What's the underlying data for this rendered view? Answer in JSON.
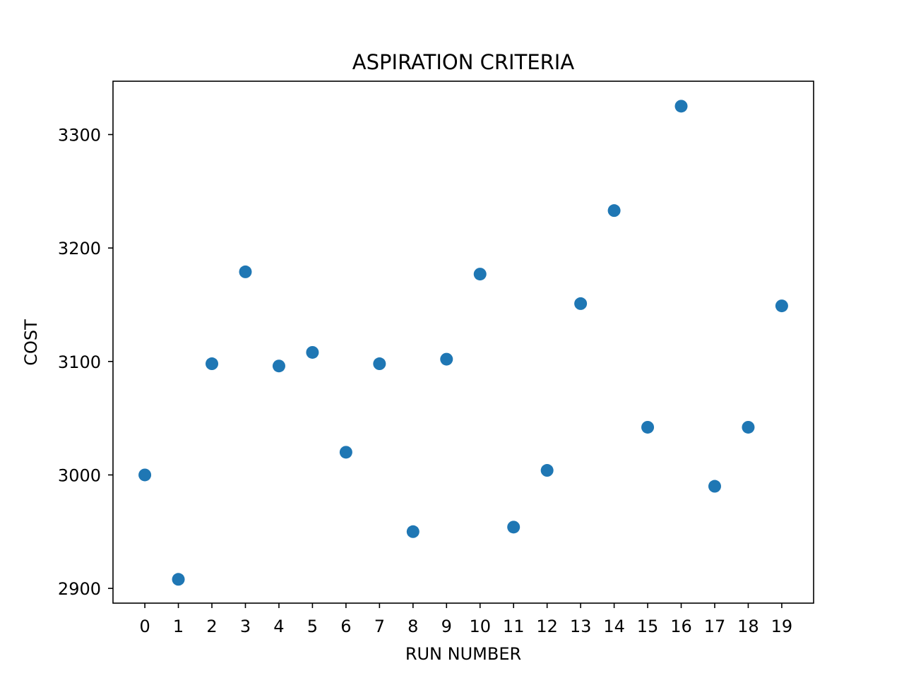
{
  "chart_data": {
    "type": "scatter",
    "title": "ASPIRATION CRITERIA",
    "xlabel": "RUN NUMBER",
    "ylabel": "COST",
    "x": [
      0,
      1,
      2,
      3,
      4,
      5,
      6,
      7,
      8,
      9,
      10,
      11,
      12,
      13,
      14,
      15,
      16,
      17,
      18,
      19
    ],
    "y": [
      3000,
      2908,
      3098,
      3179,
      3096,
      3108,
      3020,
      3098,
      2950,
      3102,
      3177,
      2954,
      3004,
      3151,
      3233,
      3042,
      3325,
      2990,
      3042,
      3149
    ],
    "xticks": [
      0,
      1,
      2,
      3,
      4,
      5,
      6,
      7,
      8,
      9,
      10,
      11,
      12,
      13,
      14,
      15,
      16,
      17,
      18,
      19
    ],
    "yticks": [
      2900,
      3000,
      3100,
      3200,
      3300
    ],
    "xlim": [
      -0.95,
      19.95
    ],
    "ylim": [
      2887,
      3347
    ],
    "grid": false,
    "legend": "none",
    "marker_color": "#1f77b4"
  }
}
